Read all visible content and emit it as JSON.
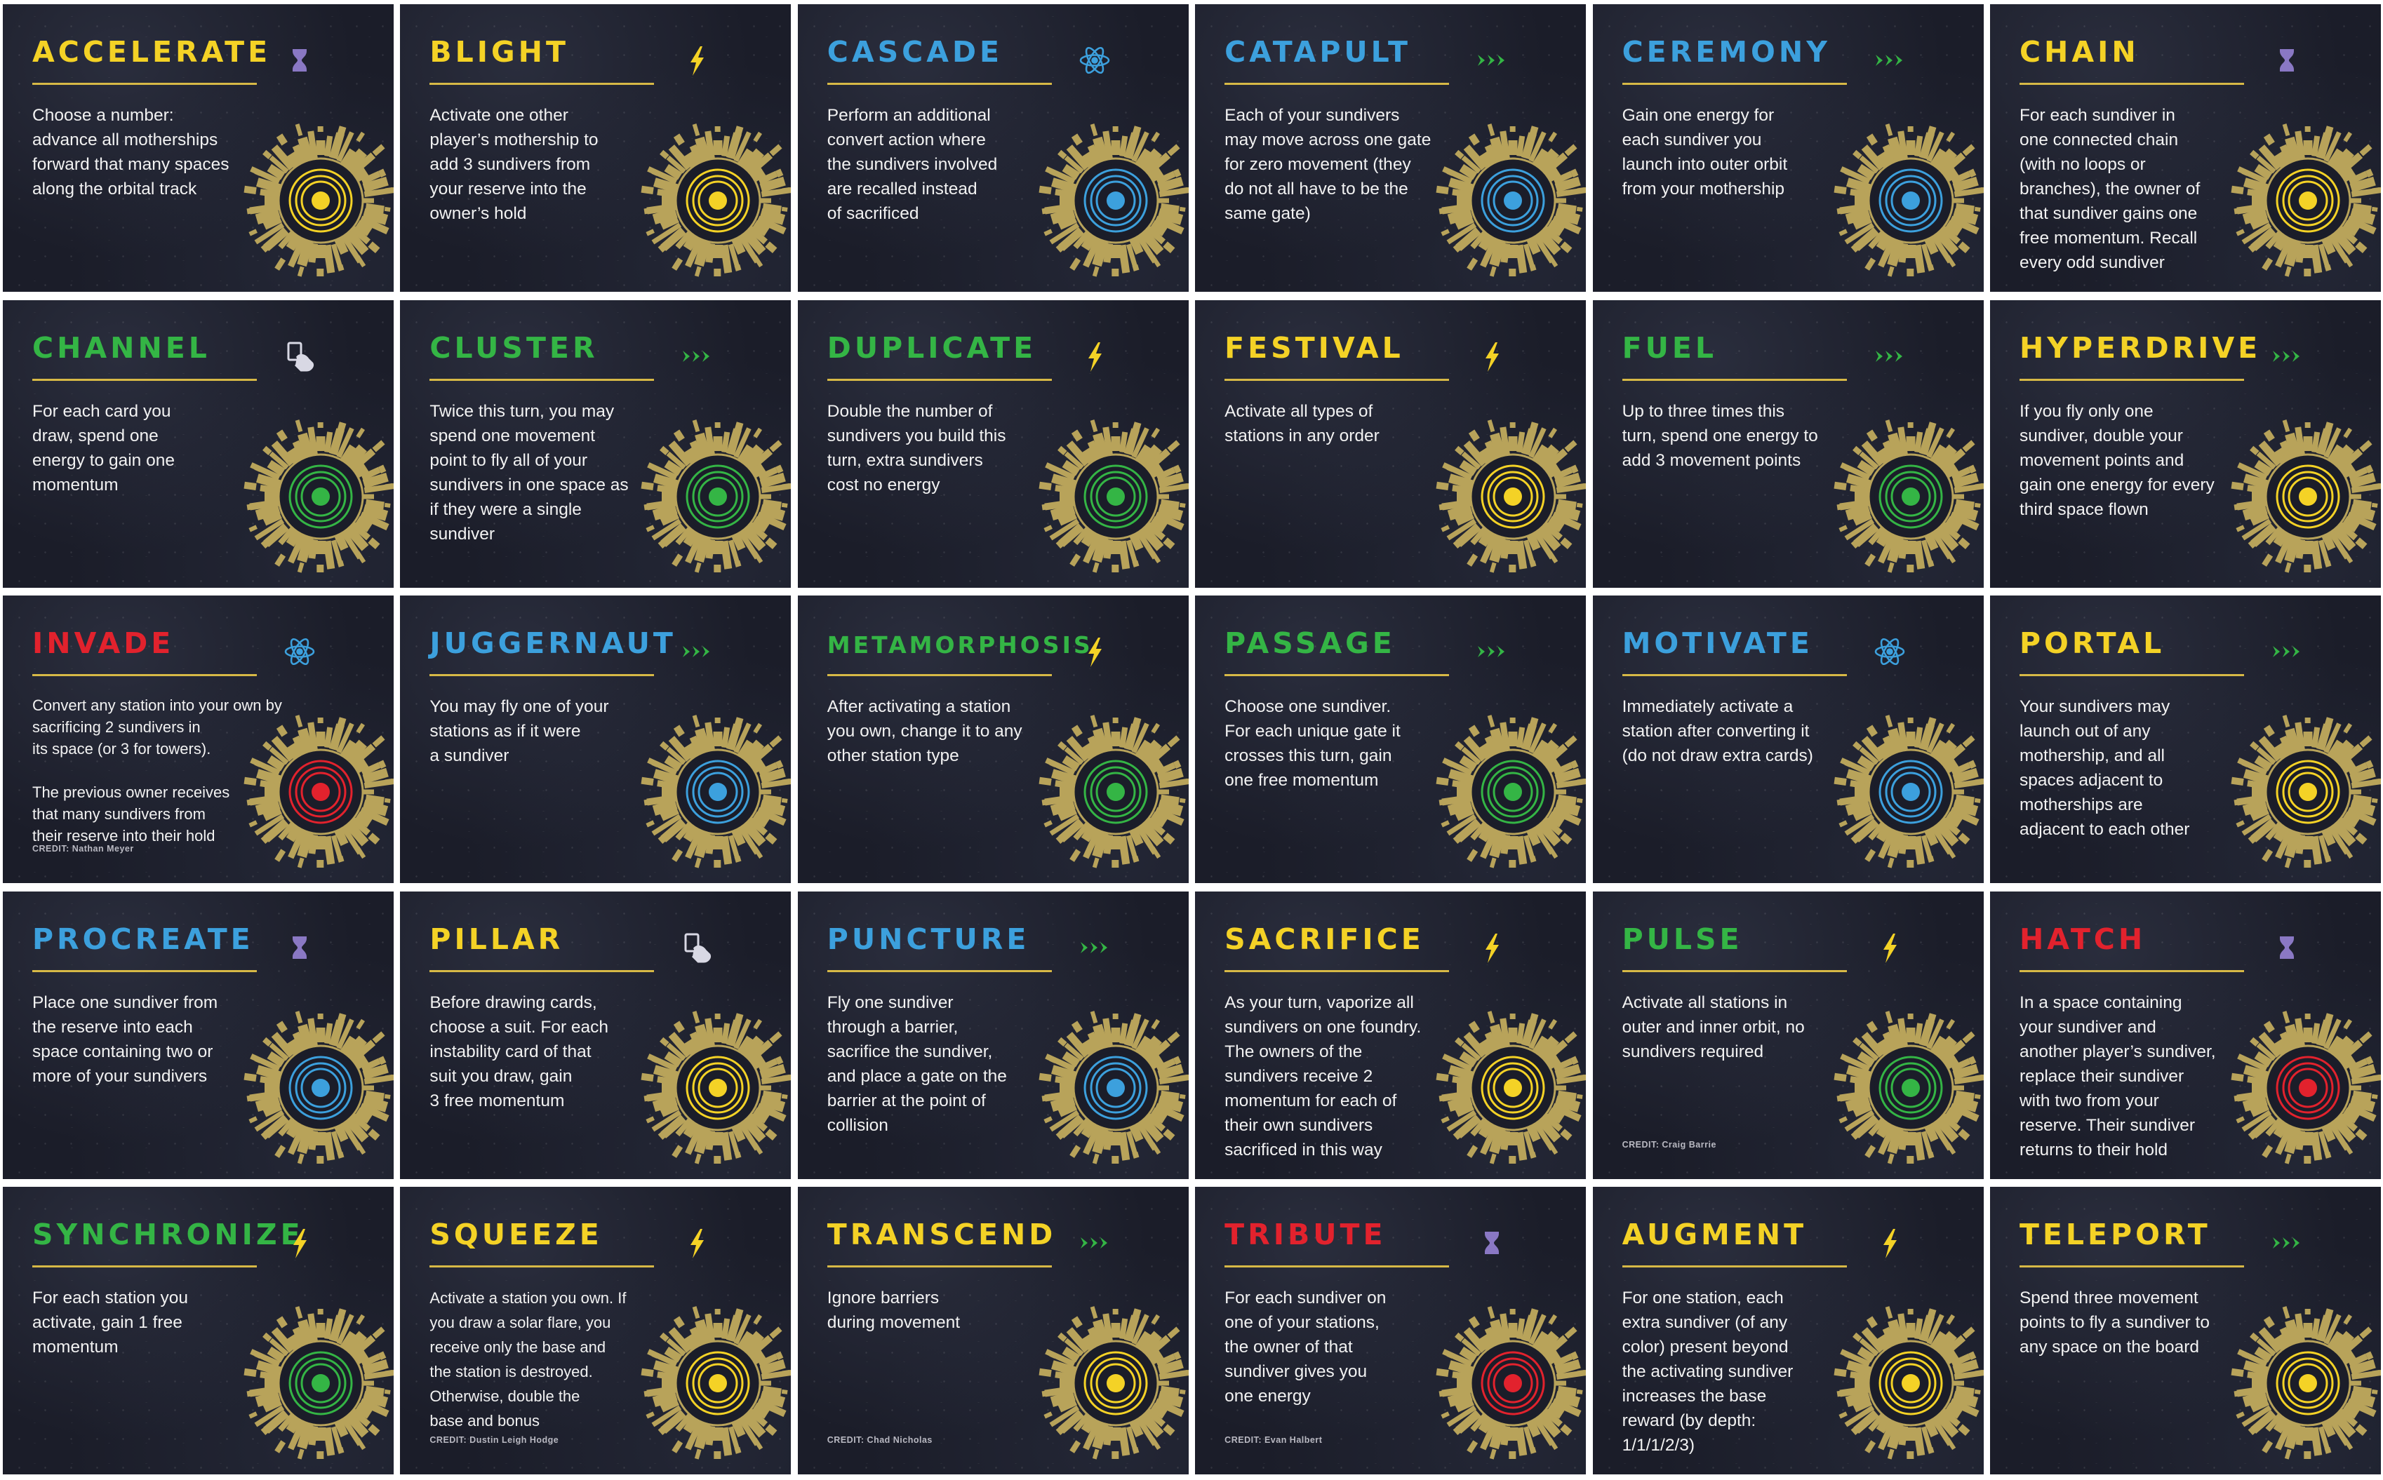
{
  "colors": {
    "yellow": "#f4d226",
    "blue": "#3ca0dd",
    "green": "#34b545",
    "red": "#e2222d",
    "gold": "#b8a35a",
    "purple": "#8a78c4",
    "card_bg": "#1b1d29"
  },
  "cards": [
    {
      "title": "ACCELERATE",
      "color": "yellow",
      "icon": "hourglass-icon",
      "body": "Choose a number:\nadvance all motherships\nforward that many spaces\nalong the orbital track",
      "credit": ""
    },
    {
      "title": "BLIGHT",
      "color": "yellow",
      "icon": "lightning-icon",
      "body": "Activate one other\nplayer’s mothership to\nadd 3 sundivers from\nyour reserve into the\nowner’s hold",
      "credit": ""
    },
    {
      "title": "CASCADE",
      "color": "blue",
      "icon": "atom-icon",
      "body": "Perform an additional\nconvert action where\nthe sundivers involved\nare recalled instead\nof sacrificed",
      "credit": ""
    },
    {
      "title": "CATAPULT",
      "color": "blue",
      "icon": "triple-chevron-icon",
      "body": "Each of your sundivers\nmay move across one gate\nfor zero movement (they\ndo not all have to be the\nsame gate)",
      "credit": ""
    },
    {
      "title": "CEREMONY",
      "color": "blue",
      "icon": "triple-chevron-icon",
      "body": "Gain one energy for\neach sundiver you\nlaunch into outer orbit\nfrom your mothership",
      "credit": ""
    },
    {
      "title": "CHAIN",
      "color": "yellow",
      "icon": "hourglass-icon",
      "body": "For each sundiver in\none connected chain\n(with no loops or\nbranches), the owner of\nthat sundiver gains one\nfree momentum. Recall\nevery odd sundiver",
      "credit": ""
    },
    {
      "title": "CHANNEL",
      "color": "green",
      "icon": "hand-card-icon",
      "body": "For each card you\ndraw, spend one\nenergy to gain one\nmomentum",
      "credit": ""
    },
    {
      "title": "CLUSTER",
      "color": "green",
      "icon": "triple-chevron-icon",
      "body": "Twice this turn, you may\nspend one movement\npoint to fly all of your\nsundivers in one space as\nif they were a single\nsundiver",
      "credit": ""
    },
    {
      "title": "DUPLICATE",
      "color": "green",
      "icon": "lightning-icon",
      "body": "Double the number of\nsundivers you build this\nturn, extra sundivers\ncost no energy",
      "credit": ""
    },
    {
      "title": "FESTIVAL",
      "color": "yellow",
      "icon": "lightning-icon",
      "body": "Activate all types of\nstations in any order",
      "credit": ""
    },
    {
      "title": "FUEL",
      "color": "green",
      "icon": "triple-chevron-icon",
      "body": "Up to three times this\nturn, spend one energy to\nadd 3 movement points",
      "credit": ""
    },
    {
      "title": "HYPERDRIVE",
      "color": "yellow",
      "icon": "triple-chevron-icon",
      "body": "If you fly only one\nsundiver, double your\nmovement points and\ngain one energy for every\nthird space flown",
      "credit": ""
    },
    {
      "title": "INVADE",
      "color": "red",
      "icon": "atom-icon",
      "body": "Convert any station into your own by\nsacrificing 2 sundivers in\nits space (or  3 for towers).\n\nThe previous owner receives\nthat many sundivers from\ntheir reserve into their hold",
      "credit": "CREDIT: Nathan Meyer"
    },
    {
      "title": "JUGGERNAUT",
      "color": "blue",
      "icon": "triple-chevron-icon",
      "body": "You may fly one of your\nstations as if it were\na sundiver",
      "credit": ""
    },
    {
      "title": "METAMORPHOSIS",
      "color": "green",
      "icon": "lightning-icon",
      "body": "After activating a station\nyou own, change it to any\nother station type",
      "credit": ""
    },
    {
      "title": "PASSAGE",
      "color": "green",
      "icon": "triple-chevron-icon",
      "body": "Choose one sundiver.\nFor each unique gate it\ncrosses this turn, gain\none free momentum",
      "credit": ""
    },
    {
      "title": "MOTIVATE",
      "color": "blue",
      "icon": "atom-icon",
      "body": "Immediately activate a\nstation after converting it\n(do not draw extra cards)",
      "credit": ""
    },
    {
      "title": "PORTAL",
      "color": "yellow",
      "icon": "triple-chevron-icon",
      "body": "Your sundivers may\nlaunch out of any\nmothership, and all\nspaces adjacent to\nmotherships are\nadjacent to each other",
      "credit": ""
    },
    {
      "title": "PROCREATE",
      "color": "blue",
      "icon": "hourglass-icon",
      "body": "Place one sundiver from\nthe reserve into each\nspace containing two or\nmore of your sundivers",
      "credit": ""
    },
    {
      "title": "PILLAR",
      "color": "yellow",
      "icon": "hand-card-icon",
      "body": "Before drawing cards,\nchoose a suit. For each\ninstability card of that\nsuit you draw, gain\n3 free momentum",
      "credit": ""
    },
    {
      "title": "PUNCTURE",
      "color": "blue",
      "icon": "triple-chevron-icon",
      "body": "Fly one sundiver\nthrough a barrier,\nsacrifice the sundiver,\nand place a gate on the\nbarrier at the point of\ncollision",
      "credit": ""
    },
    {
      "title": "SACRIFICE",
      "color": "yellow",
      "icon": "lightning-icon",
      "body": "As your turn, vaporize all\nsundivers on one foundry.\nThe owners of the\nsundivers receive 2\nmomentum for each of\ntheir own sundivers\nsacrificed in this way",
      "credit": ""
    },
    {
      "title": "PULSE",
      "color": "green",
      "icon": "lightning-icon",
      "body": "Activate all stations in\nouter and inner orbit, no\nsundivers required",
      "credit": "CREDIT: Craig Barrie"
    },
    {
      "title": "HATCH",
      "color": "red",
      "icon": "hourglass-icon",
      "body": "In a space containing\nyour sundiver and\nanother player’s sundiver,\nreplace their sundiver\nwith two from your\nreserve. Their sundiver\nreturns to their hold",
      "credit": ""
    },
    {
      "title": "SYNCHRONIZE",
      "color": "green",
      "icon": "lightning-icon",
      "body": "For each station you\nactivate, gain 1 free\nmomentum",
      "credit": ""
    },
    {
      "title": "SQUEEZE",
      "color": "yellow",
      "icon": "lightning-icon",
      "body": "Activate a station you own. If\nyou draw a solar flare, you\nreceive only the base and\nthe station is destroyed.\nOtherwise, double the\nbase and bonus",
      "credit": "CREDIT: Dustin Leigh Hodge"
    },
    {
      "title": "TRANSCEND",
      "color": "yellow",
      "icon": "triple-chevron-icon",
      "body": "Ignore barriers\nduring movement",
      "credit": "CREDIT: Chad Nicholas"
    },
    {
      "title": "TRIBUTE",
      "color": "red",
      "icon": "hourglass-icon",
      "body": "For each sundiver on\none of your stations,\nthe owner of that\nsundiver gives you\none energy",
      "credit": "CREDIT: Evan Halbert"
    },
    {
      "title": "AUGMENT",
      "color": "yellow",
      "icon": "lightning-icon",
      "body": "For one station, each\nextra sundiver (of any\ncolor) present beyond\nthe activating sundiver\nincreases the base\nreward (by depth:\n1/1/1/2/3)",
      "credit": ""
    },
    {
      "title": "TELEPORT",
      "color": "yellow",
      "icon": "triple-chevron-icon",
      "body": "Spend three movement\npoints to fly a sundiver to\nany space on the board",
      "credit": ""
    }
  ]
}
